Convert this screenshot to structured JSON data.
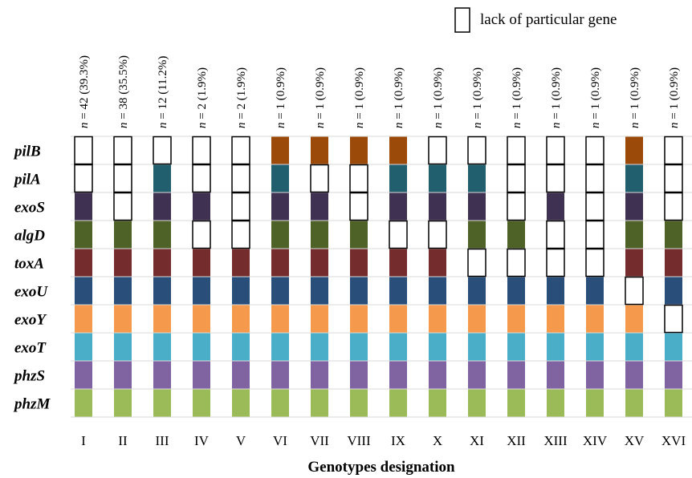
{
  "chart_data": {
    "type": "heatmap",
    "xlabel": "Genotypes designation",
    "legend": {
      "label": "lack of  particular gene",
      "placement": "top-right"
    },
    "genes": [
      "pilB",
      "pilA",
      "exoS",
      "algD",
      "toxA",
      "exoU",
      "exoY",
      "exoT",
      "phzS",
      "phzM"
    ],
    "gene_colors": {
      "pilB": "#9C4A0A",
      "pilA": "#215E6E",
      "exoS": "#3F3152",
      "algD": "#4E6127",
      "toxA": "#752C2C",
      "exoU": "#2A4E7A",
      "exoY": "#F59A4C",
      "exoT": "#4BAEC8",
      "phzS": "#8064A2",
      "phzM": "#9BBB59"
    },
    "genotypes": [
      {
        "id": "I",
        "n": "42",
        "pct": "39.3%",
        "present": [
          0,
          0,
          1,
          1,
          1,
          1,
          1,
          1,
          1,
          1
        ]
      },
      {
        "id": "II",
        "n": "38",
        "pct": "35.5%",
        "present": [
          0,
          0,
          0,
          1,
          1,
          1,
          1,
          1,
          1,
          1
        ]
      },
      {
        "id": "III",
        "n": "12",
        "pct": "11.2%",
        "present": [
          0,
          1,
          1,
          1,
          1,
          1,
          1,
          1,
          1,
          1
        ]
      },
      {
        "id": "IV",
        "n": "2",
        "pct": "1.9%",
        "present": [
          0,
          0,
          1,
          0,
          1,
          1,
          1,
          1,
          1,
          1
        ]
      },
      {
        "id": "V",
        "n": "2",
        "pct": "1.9%",
        "present": [
          0,
          0,
          0,
          0,
          1,
          1,
          1,
          1,
          1,
          1
        ]
      },
      {
        "id": "VI",
        "n": "1",
        "pct": "0.9%",
        "present": [
          1,
          1,
          1,
          1,
          1,
          1,
          1,
          1,
          1,
          1
        ]
      },
      {
        "id": "VII",
        "n": "1",
        "pct": "0.9%",
        "present": [
          1,
          0,
          1,
          1,
          1,
          1,
          1,
          1,
          1,
          1
        ]
      },
      {
        "id": "VIII",
        "n": "1",
        "pct": "0.9%",
        "present": [
          1,
          0,
          0,
          1,
          1,
          1,
          1,
          1,
          1,
          1
        ]
      },
      {
        "id": "IX",
        "n": "1",
        "pct": "0.9%",
        "present": [
          1,
          1,
          1,
          0,
          1,
          1,
          1,
          1,
          1,
          1
        ]
      },
      {
        "id": "X",
        "n": "1",
        "pct": "0.9%",
        "present": [
          0,
          1,
          1,
          0,
          1,
          1,
          1,
          1,
          1,
          1
        ]
      },
      {
        "id": "XI",
        "n": "1",
        "pct": "0.9%",
        "present": [
          0,
          1,
          1,
          1,
          0,
          1,
          1,
          1,
          1,
          1
        ]
      },
      {
        "id": "XII",
        "n": "1",
        "pct": "0.9%",
        "present": [
          0,
          0,
          0,
          1,
          0,
          1,
          1,
          1,
          1,
          1
        ]
      },
      {
        "id": "XIII",
        "n": "1",
        "pct": "0.9%",
        "present": [
          0,
          0,
          1,
          0,
          0,
          1,
          1,
          1,
          1,
          1
        ]
      },
      {
        "id": "XIV",
        "n": "1",
        "pct": "0.9%",
        "present": [
          0,
          0,
          0,
          0,
          0,
          1,
          1,
          1,
          1,
          1
        ]
      },
      {
        "id": "XV",
        "n": "1",
        "pct": "0.9%",
        "present": [
          1,
          1,
          1,
          1,
          1,
          0,
          1,
          1,
          1,
          1
        ]
      },
      {
        "id": "XVI",
        "n": "1",
        "pct": "0.9%",
        "present": [
          0,
          0,
          0,
          1,
          1,
          1,
          0,
          1,
          1,
          1
        ]
      }
    ]
  }
}
